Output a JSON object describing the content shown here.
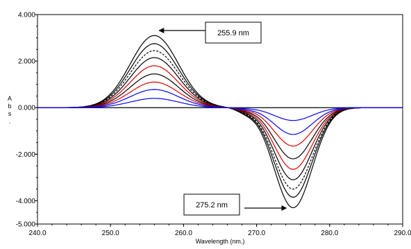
{
  "chart_data": {
    "type": "line",
    "xlabel": "Wavelength (nm.)",
    "ylabel": "Abs",
    "xlim": [
      240.0,
      290.0
    ],
    "ylim": [
      -5.0,
      4.0
    ],
    "x_ticks": [
      240.0,
      250.0,
      260.0,
      270.0,
      280.0,
      290.0
    ],
    "x_tick_labels": [
      "240.0",
      "250.0",
      "260.0",
      "270.0",
      "280.0",
      "290.0"
    ],
    "y_ticks": [
      4.0,
      2.0,
      0.0,
      -2.0,
      -4.0,
      -5.0
    ],
    "y_tick_labels": [
      "4.000",
      "2.000",
      "0.000",
      "-2.000",
      "-4.000",
      "-5.000"
    ],
    "grid": false,
    "zero_line": true,
    "annotations": [
      {
        "text": "255.9 nm",
        "x": 255.9,
        "y": 3.1
      },
      {
        "text": "275.2 nm",
        "x": 275.2,
        "y": -4.3
      }
    ],
    "series": [
      {
        "color": "#000000",
        "dash": false,
        "peak": 3.1,
        "trough": -4.3
      },
      {
        "color": "#000000",
        "dash": false,
        "peak": 2.75,
        "trough": -3.85
      },
      {
        "color": "#000000",
        "dash": true,
        "peak": 2.45,
        "trough": -3.5
      },
      {
        "color": "#000000",
        "dash": false,
        "peak": 2.15,
        "trough": -3.1
      },
      {
        "color": "#e00000",
        "dash": false,
        "peak": 1.8,
        "trough": -2.65
      },
      {
        "color": "#000000",
        "dash": false,
        "peak": 1.45,
        "trough": -2.2
      },
      {
        "color": "#e00000",
        "dash": false,
        "peak": 1.1,
        "trough": -1.65
      },
      {
        "color": "#0000ff",
        "dash": false,
        "peak": 0.78,
        "trough": -1.15
      },
      {
        "color": "#0000ff",
        "dash": false,
        "peak": 0.4,
        "trough": -0.55
      }
    ]
  }
}
